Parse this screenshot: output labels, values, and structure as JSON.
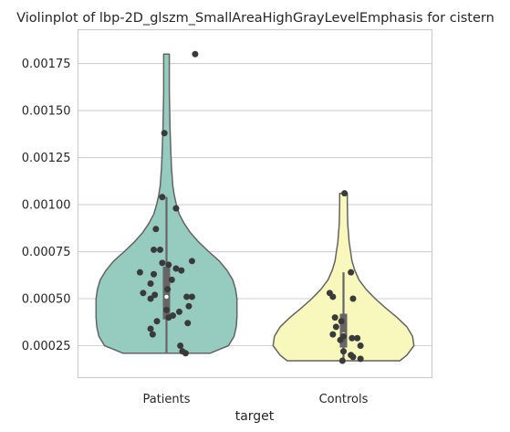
{
  "chart_data": {
    "type": "violin",
    "title": "Violinplot of lbp-2D_glszm_SmallAreaHighGrayLevelEmphasis for cistern",
    "xlabel": "target",
    "ylabel": "",
    "categories": [
      "Patients",
      "Controls"
    ],
    "ylim": [
      8e-05,
      0.00193
    ],
    "yticks": [
      0.00025,
      0.0005,
      0.00075,
      0.001,
      0.00125,
      0.0015,
      0.00175
    ],
    "ytick_labels": [
      "0.00025",
      "0.00050",
      "0.00075",
      "0.00100",
      "0.00125",
      "0.00150",
      "0.00175"
    ],
    "grid": "horizontal",
    "colors": {
      "Patients": "#96cbc0",
      "Controls": "#f8f8bc",
      "outline": "#636363",
      "points": "#3a3a3a",
      "box": "#666666",
      "grid": "#d0d0d0",
      "frame": "#cccccc"
    },
    "series": [
      {
        "name": "Patients",
        "range": [
          0.00021,
          0.0018
        ],
        "quartiles": [
          0.00039,
          0.00051,
          0.00067
        ],
        "whiskers": [
          0.00021,
          0.00104
        ],
        "density": [
          [
            0.00021,
            0.62
          ],
          [
            0.00025,
            0.88
          ],
          [
            0.0003,
            0.96
          ],
          [
            0.00035,
            0.99
          ],
          [
            0.0004,
            1.0
          ],
          [
            0.00045,
            1.0
          ],
          [
            0.0005,
            1.0
          ],
          [
            0.00055,
            0.98
          ],
          [
            0.0006,
            0.94
          ],
          [
            0.00065,
            0.86
          ],
          [
            0.0007,
            0.75
          ],
          [
            0.00075,
            0.6
          ],
          [
            0.0008,
            0.46
          ],
          [
            0.00085,
            0.34
          ],
          [
            0.0009,
            0.25
          ],
          [
            0.00095,
            0.18
          ],
          [
            0.001,
            0.14
          ],
          [
            0.00105,
            0.11
          ],
          [
            0.0011,
            0.09
          ],
          [
            0.0012,
            0.07
          ],
          [
            0.0013,
            0.06
          ],
          [
            0.0014,
            0.05
          ],
          [
            0.0015,
            0.045
          ],
          [
            0.0016,
            0.04
          ],
          [
            0.0017,
            0.04
          ],
          [
            0.0018,
            0.04
          ]
        ],
        "points": [
          {
            "y": 0.0018,
            "j": 0.27
          },
          {
            "y": 0.00138,
            "j": -0.02
          },
          {
            "y": 0.00104,
            "j": -0.04
          },
          {
            "y": 0.00098,
            "j": 0.09
          },
          {
            "y": 0.00087,
            "j": -0.1
          },
          {
            "y": 0.00076,
            "j": -0.12
          },
          {
            "y": 0.00076,
            "j": -0.06
          },
          {
            "y": 0.0007,
            "j": 0.24
          },
          {
            "y": 0.00069,
            "j": -0.04
          },
          {
            "y": 0.00068,
            "j": 0.02
          },
          {
            "y": 0.00066,
            "j": 0.09
          },
          {
            "y": 0.00065,
            "j": 0.14
          },
          {
            "y": 0.00064,
            "j": -0.25
          },
          {
            "y": 0.00063,
            "j": -0.12
          },
          {
            "y": 0.0006,
            "j": 0.05
          },
          {
            "y": 0.00058,
            "j": -0.15
          },
          {
            "y": 0.00055,
            "j": 0.01
          },
          {
            "y": 0.00053,
            "j": -0.22
          },
          {
            "y": 0.00052,
            "j": -0.11
          },
          {
            "y": 0.00051,
            "j": 0.19
          },
          {
            "y": 0.00051,
            "j": 0.24
          },
          {
            "y": 0.0005,
            "j": -0.15
          },
          {
            "y": 0.00046,
            "j": 0.21
          },
          {
            "y": 0.00044,
            "j": 0.0
          },
          {
            "y": 0.00043,
            "j": 0.12
          },
          {
            "y": 0.00041,
            "j": 0.06
          },
          {
            "y": 0.0004,
            "j": 0.02
          },
          {
            "y": 0.00038,
            "j": -0.09
          },
          {
            "y": 0.00037,
            "j": 0.2
          },
          {
            "y": 0.00034,
            "j": -0.15
          },
          {
            "y": 0.00031,
            "j": -0.13
          },
          {
            "y": 0.00025,
            "j": 0.13
          },
          {
            "y": 0.00022,
            "j": 0.15
          },
          {
            "y": 0.00021,
            "j": 0.18
          }
        ]
      },
      {
        "name": "Controls",
        "range": [
          0.00017,
          0.00106
        ],
        "quartiles": [
          0.00024,
          0.00031,
          0.00042
        ],
        "whiskers": [
          0.00017,
          0.00064
        ],
        "density": [
          [
            0.00017,
            0.8
          ],
          [
            0.0002,
            0.9
          ],
          [
            0.00025,
            1.0
          ],
          [
            0.0003,
            0.98
          ],
          [
            0.00035,
            0.9
          ],
          [
            0.0004,
            0.76
          ],
          [
            0.00045,
            0.6
          ],
          [
            0.0005,
            0.45
          ],
          [
            0.00055,
            0.32
          ],
          [
            0.0006,
            0.22
          ],
          [
            0.00065,
            0.16
          ],
          [
            0.0007,
            0.12
          ],
          [
            0.0008,
            0.08
          ],
          [
            0.0009,
            0.06
          ],
          [
            0.001,
            0.055
          ],
          [
            0.00106,
            0.055
          ]
        ],
        "points": [
          {
            "y": 0.00106,
            "j": 0.01
          },
          {
            "y": 0.00064,
            "j": 0.07
          },
          {
            "y": 0.00053,
            "j": -0.13
          },
          {
            "y": 0.00051,
            "j": -0.1
          },
          {
            "y": 0.0005,
            "j": 0.09
          },
          {
            "y": 0.0004,
            "j": -0.08
          },
          {
            "y": 0.00038,
            "j": -0.02
          },
          {
            "y": 0.00035,
            "j": -0.07
          },
          {
            "y": 0.00031,
            "j": -0.1
          },
          {
            "y": 0.0003,
            "j": 0.0
          },
          {
            "y": 0.00029,
            "j": 0.08
          },
          {
            "y": 0.00029,
            "j": 0.13
          },
          {
            "y": 0.00028,
            "j": -0.03
          },
          {
            "y": 0.00025,
            "j": 0.16
          },
          {
            "y": 0.00022,
            "j": 0.0
          },
          {
            "y": 0.0002,
            "j": 0.07
          },
          {
            "y": 0.00019,
            "j": 0.09
          },
          {
            "y": 0.00018,
            "j": 0.16
          },
          {
            "y": 0.00017,
            "j": -0.01
          }
        ]
      }
    ]
  }
}
